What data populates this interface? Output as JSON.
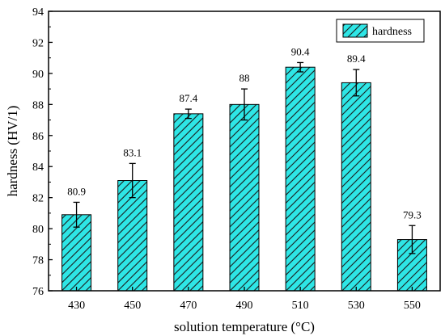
{
  "chart_data": {
    "type": "bar",
    "title": "",
    "xlabel": "solution temperature (°C)",
    "ylabel": "hardness (HV/1)",
    "categories": [
      "430",
      "450",
      "470",
      "490",
      "510",
      "530",
      "550"
    ],
    "series": [
      {
        "name": "hardness",
        "values": [
          80.9,
          83.1,
          87.4,
          88.0,
          90.4,
          89.4,
          79.3
        ],
        "value_labels": [
          "80.9",
          "83.1",
          "87.4",
          "88",
          "90.4",
          "89.4",
          "79.3"
        ],
        "errors": [
          0.8,
          1.1,
          0.3,
          1.0,
          0.3,
          0.85,
          0.9
        ]
      }
    ],
    "ylim": [
      76,
      94
    ],
    "yticks": [
      76,
      78,
      80,
      82,
      84,
      86,
      88,
      90,
      92,
      94
    ],
    "legend_position": "top-right",
    "grid": false,
    "bar_color": "#2ee6e6",
    "hatch_color": "#1a1a1a"
  }
}
